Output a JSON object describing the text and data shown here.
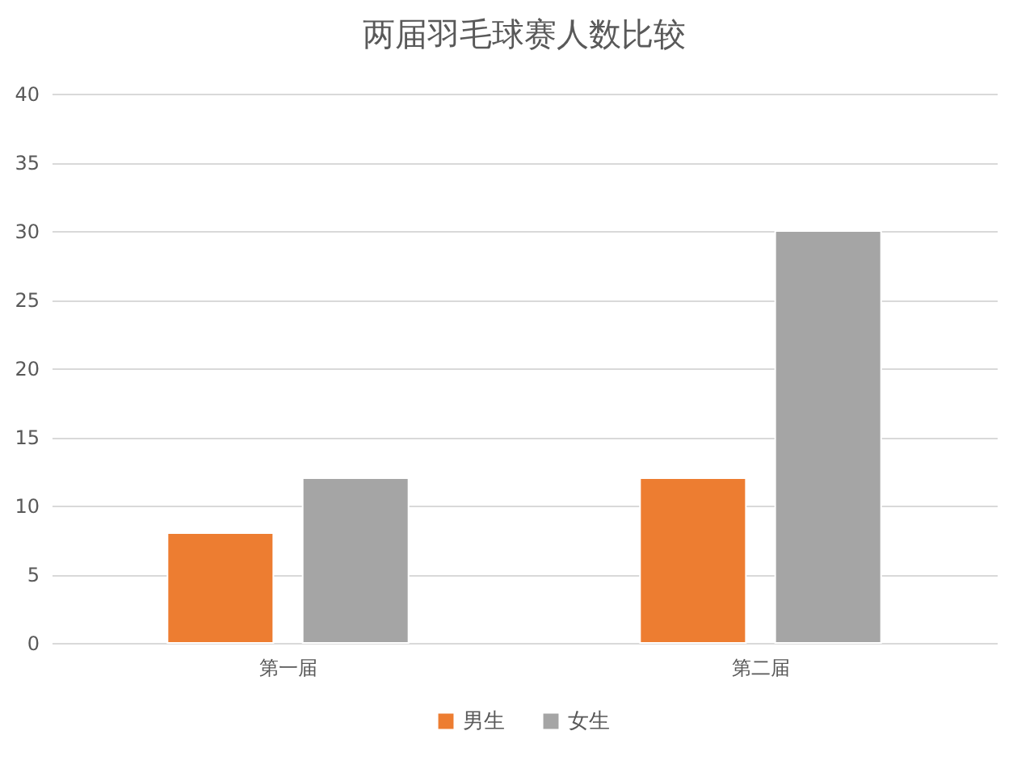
{
  "chart_data": {
    "type": "bar",
    "title": "两届羽毛球赛人数比较",
    "categories": [
      "第一届",
      "第二届"
    ],
    "series": [
      {
        "name": "男生",
        "color": "#ed7d31",
        "values": [
          8,
          12
        ]
      },
      {
        "name": "女生",
        "color": "#a5a5a5",
        "values": [
          12,
          30
        ]
      }
    ],
    "ylim": [
      0,
      40
    ],
    "yticks": [
      0,
      5,
      10,
      15,
      20,
      25,
      30,
      35,
      40
    ],
    "grid": "y",
    "legend": "bottom"
  }
}
